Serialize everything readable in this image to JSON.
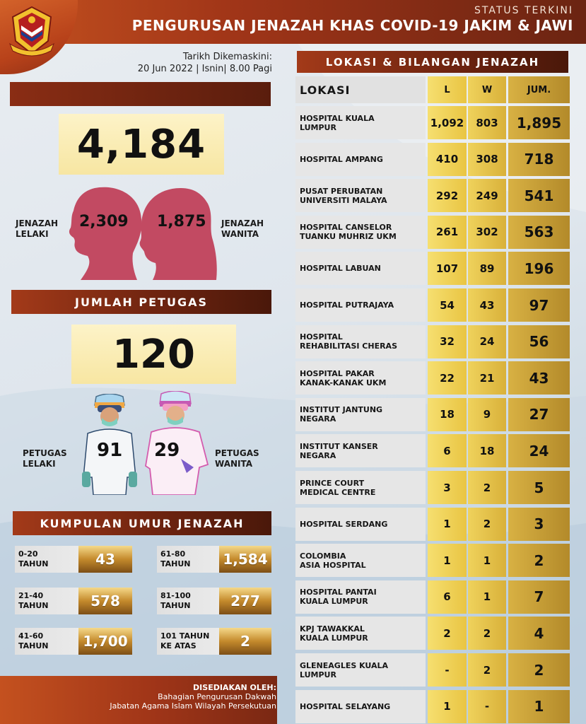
{
  "header": {
    "status": "STATUS TERKINI",
    "title": "PENGURUSAN JENAZAH KHAS COVID-19 JAKIM & JAWI"
  },
  "updated": {
    "label": "Tarikh Dikemaskini:",
    "value": "20 Jun 2022 | Isnin| 8.00 Pagi"
  },
  "totals": {
    "total_jenazah": "4,184",
    "male_label_1": "JENAZAH",
    "male_label_2": "LELAKI",
    "male_value": "2,309",
    "female_value": "1,875",
    "female_label_1": "JENAZAH",
    "female_label_2": "WANITA"
  },
  "petugas": {
    "title": "JUMLAH PETUGAS",
    "total": "120",
    "male_label_1": "PETUGAS",
    "male_label_2": "LELAKI",
    "male_value": "91",
    "female_value": "29",
    "female_label_1": "PETUGAS",
    "female_label_2": "WANITA"
  },
  "age_groups": {
    "title": "KUMPULAN UMUR JENAZAH",
    "items": [
      {
        "line1": "0-20",
        "line2": "TAHUN",
        "value": "43"
      },
      {
        "line1": "21-40",
        "line2": "TAHUN",
        "value": "578"
      },
      {
        "line1": "41-60",
        "line2": "TAHUN",
        "value": "1,700"
      },
      {
        "line1": "61-80",
        "line2": "TAHUN",
        "value": "1,584"
      },
      {
        "line1": "81-100",
        "line2": "TAHUN",
        "value": "277"
      },
      {
        "line1": "101 TAHUN",
        "line2": "KE ATAS",
        "value": "2"
      }
    ]
  },
  "footer": {
    "prepared": "DISEDIAKAN OLEH:",
    "line1": "Bahagian Pengurusan Dakwah",
    "line2": "Jabatan Agama Islam Wilayah Persekutuan"
  },
  "table": {
    "title": "LOKASI & BILANGAN JENAZAH",
    "headers": {
      "loc": "LOKASI",
      "l": "L",
      "w": "W",
      "j": "JUM."
    },
    "rows": [
      {
        "line1": "HOSPITAL  KUALA",
        "line2": "LUMPUR",
        "l": "1,092",
        "w": "803",
        "j": "1,895"
      },
      {
        "line1": "HOSPITAL  AMPANG",
        "line2": "",
        "l": "410",
        "w": "308",
        "j": "718"
      },
      {
        "line1": "PUSAT PERUBATAN",
        "line2": "UNIVERSITI MALAYA",
        "l": "292",
        "w": "249",
        "j": "541"
      },
      {
        "line1": "HOSPITAL  CANSELOR",
        "line2": "TUANKU MUHRIZ UKM",
        "l": "261",
        "w": "302",
        "j": "563"
      },
      {
        "line1": "HOSPITAL  LABUAN",
        "line2": "",
        "l": "107",
        "w": "89",
        "j": "196"
      },
      {
        "line1": "HOSPITAL PUTRAJAYA",
        "line2": "",
        "l": "54",
        "w": "43",
        "j": "97"
      },
      {
        "line1": "HOSPITAL",
        "line2": "REHABILITASI CHERAS",
        "l": "32",
        "w": "24",
        "j": "56"
      },
      {
        "line1": "HOSPITAL PAKAR",
        "line2": "KANAK-KANAK UKM",
        "l": "22",
        "w": "21",
        "j": "43"
      },
      {
        "line1": "INSTITUT JANTUNG",
        "line2": "NEGARA",
        "l": "18",
        "w": "9",
        "j": "27"
      },
      {
        "line1": "INSTITUT KANSER",
        "line2": "NEGARA",
        "l": "6",
        "w": "18",
        "j": "24"
      },
      {
        "line1": "PRINCE COURT",
        "line2": "MEDICAL CENTRE",
        "l": "3",
        "w": "2",
        "j": "5"
      },
      {
        "line1": "HOSPITAL SERDANG",
        "line2": "",
        "l": "1",
        "w": "2",
        "j": "3"
      },
      {
        "line1": "COLOMBIA",
        "line2": "ASIA HOSPITAL",
        "l": "1",
        "w": "1",
        "j": "2"
      },
      {
        "line1": "HOSPITAL PANTAI",
        "line2": "KUALA LUMPUR",
        "l": "6",
        "w": "1",
        "j": "7"
      },
      {
        "line1": "KPJ TAWAKKAL",
        "line2": "KUALA LUMPUR",
        "l": "2",
        "w": "2",
        "j": "4"
      },
      {
        "line1": "GLENEAGLES KUALA",
        "line2": "LUMPUR",
        "l": "-",
        "w": "2",
        "j": "2"
      },
      {
        "line1": "HOSPITAL SELAYANG",
        "line2": "",
        "l": "1",
        "w": "-",
        "j": "1"
      }
    ]
  },
  "colors": {
    "brand_orange": "#c4511f",
    "brand_dark": "#5a1d0d",
    "silhouette": "#c24a62",
    "highlight_yellow": "#f7e6a2"
  }
}
